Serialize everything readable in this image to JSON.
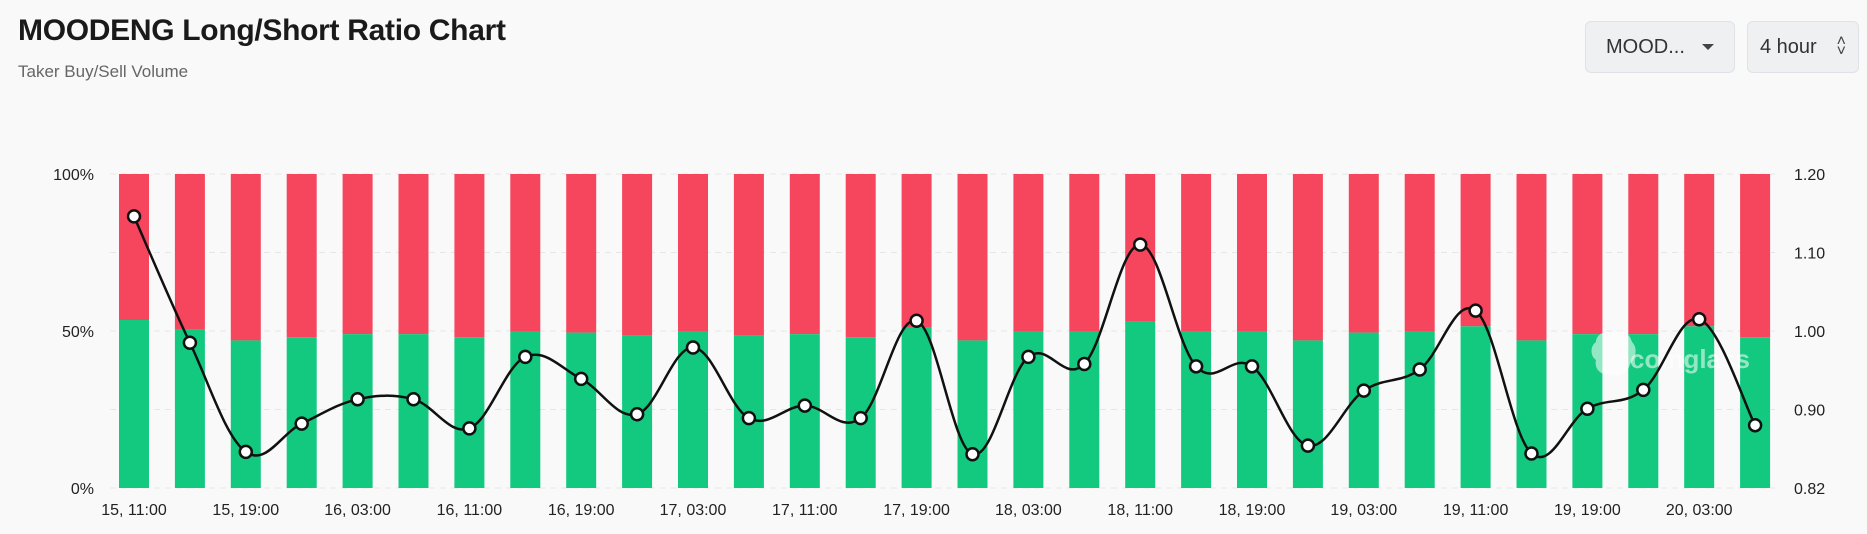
{
  "header": {
    "title": "MOODENG Long/Short Ratio Chart",
    "subtitle": "Taker Buy/Sell Volume"
  },
  "controls": {
    "symbol_value": "MOOD...",
    "interval_value": "4 hour"
  },
  "watermark": "coinglass",
  "colors": {
    "long": "#12c97f",
    "short": "#f6465d",
    "ratio_line": "#111111"
  },
  "chart_data": {
    "type": "bar",
    "stacked": true,
    "percent_stacked": true,
    "x_tick_labels": [
      "15, 11:00",
      "15, 19:00",
      "16, 03:00",
      "16, 11:00",
      "16, 19:00",
      "17, 03:00",
      "17, 11:00",
      "17, 19:00",
      "18, 03:00",
      "18, 11:00",
      "18, 19:00",
      "19, 03:00",
      "19, 11:00",
      "19, 19:00",
      "20, 03:00"
    ],
    "left_axis": {
      "ticks": [
        "0%",
        "50%",
        "100%"
      ],
      "range": [
        0,
        100
      ]
    },
    "right_axis": {
      "ticks": [
        "0.82",
        "0.90",
        "1.00",
        "1.10",
        "1.20"
      ],
      "range": [
        0.8,
        1.2
      ]
    },
    "series": [
      {
        "values": [
          53.5,
          50.5,
          47.0,
          48.0,
          49.0,
          49.0,
          48.0,
          50.0,
          49.5,
          48.5,
          50.0,
          48.5,
          49.0,
          48.0,
          51.0,
          47.0,
          50.0,
          50.0,
          53.0,
          50.0,
          50.0,
          47.0,
          49.5,
          50.0,
          51.5,
          47.0,
          49.0,
          49.0,
          51.5,
          48.0
        ]
      },
      {
        "values": [
          46.5,
          49.5,
          53.0,
          52.0,
          51.0,
          51.0,
          52.0,
          50.0,
          50.5,
          51.5,
          50.0,
          51.5,
          51.0,
          52.0,
          49.0,
          53.0,
          50.0,
          50.0,
          47.0,
          50.0,
          50.0,
          53.0,
          50.5,
          50.0,
          48.5,
          53.0,
          51.0,
          51.0,
          48.5,
          52.0
        ]
      },
      {
        "values": [
          1.146,
          0.985,
          0.846,
          0.882,
          0.913,
          0.913,
          0.876,
          0.967,
          0.939,
          0.894,
          0.979,
          0.889,
          0.905,
          0.889,
          1.013,
          0.843,
          0.967,
          0.958,
          1.11,
          0.955,
          0.955,
          0.854,
          0.924,
          0.951,
          1.026,
          0.844,
          0.901,
          0.925,
          1.015,
          0.88
        ]
      }
    ]
  }
}
